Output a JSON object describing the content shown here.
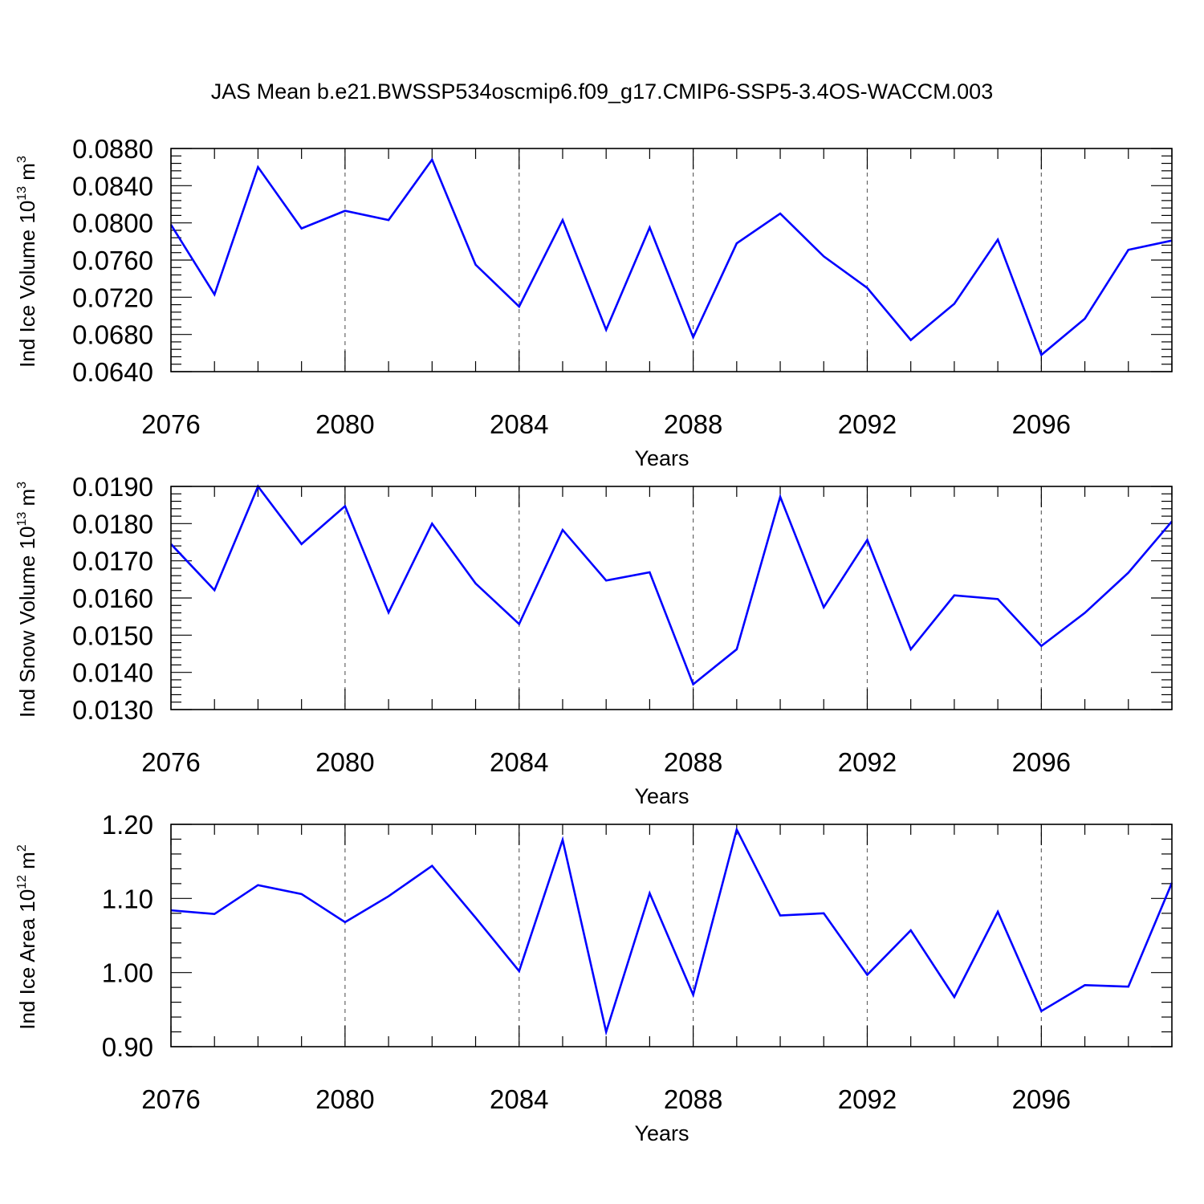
{
  "figure": {
    "title": "JAS Mean b.e21.BWSSP534oscmip6.f09_g17.CMIP6-SSP5-3.4OS-WACCM.003",
    "line_color": "#0000ff"
  },
  "chart_data": [
    {
      "type": "line",
      "xlabel": "Years",
      "ylabel": "Ind Ice Volume 10",
      "ylabel_exp": "13",
      "ylabel_unit": " m",
      "ylabel_unit_exp": "3",
      "xlim": [
        2076,
        2099
      ],
      "ylim": [
        0.064,
        0.088
      ],
      "yticks": [
        0.064,
        0.068,
        0.072,
        0.076,
        0.08,
        0.084,
        0.088
      ],
      "ytick_labels": [
        "0.0640",
        "0.0680",
        "0.0720",
        "0.0760",
        "0.0800",
        "0.0840",
        "0.0880"
      ],
      "xticks": [
        2076,
        2080,
        2084,
        2088,
        2092,
        2096
      ],
      "xtick_labels": [
        "2076",
        "2080",
        "2084",
        "2088",
        "2092",
        "2096"
      ],
      "grid": "vertical-dashed",
      "x": [
        2076,
        2077,
        2078,
        2079,
        2080,
        2081,
        2082,
        2083,
        2084,
        2085,
        2086,
        2087,
        2088,
        2089,
        2090,
        2091,
        2092,
        2093,
        2094,
        2095,
        2096,
        2097,
        2098,
        2099
      ],
      "y": [
        0.0798,
        0.0723,
        0.086,
        0.0794,
        0.0813,
        0.0803,
        0.0868,
        0.0755,
        0.071,
        0.0803,
        0.0685,
        0.0795,
        0.0677,
        0.0778,
        0.081,
        0.0764,
        0.073,
        0.0674,
        0.0713,
        0.0782,
        0.0658,
        0.0697,
        0.0771,
        0.0781
      ]
    },
    {
      "type": "line",
      "xlabel": "Years",
      "ylabel": "Ind Snow Volume 10",
      "ylabel_exp": "13",
      "ylabel_unit": " m",
      "ylabel_unit_exp": "3",
      "xlim": [
        2076,
        2099
      ],
      "ylim": [
        0.013,
        0.019
      ],
      "yticks": [
        0.013,
        0.014,
        0.015,
        0.016,
        0.017,
        0.018,
        0.019
      ],
      "ytick_labels": [
        "0.0130",
        "0.0140",
        "0.0150",
        "0.0160",
        "0.0170",
        "0.0180",
        "0.0190"
      ],
      "xticks": [
        2076,
        2080,
        2084,
        2088,
        2092,
        2096
      ],
      "xtick_labels": [
        "2076",
        "2080",
        "2084",
        "2088",
        "2092",
        "2096"
      ],
      "grid": "vertical-dashed",
      "x": [
        2076,
        2077,
        2078,
        2079,
        2080,
        2081,
        2082,
        2083,
        2084,
        2085,
        2086,
        2087,
        2088,
        2089,
        2090,
        2091,
        2092,
        2093,
        2094,
        2095,
        2096,
        2097,
        2098,
        2099
      ],
      "y": [
        0.01745,
        0.01621,
        0.019,
        0.01745,
        0.01847,
        0.01561,
        0.018,
        0.01639,
        0.0153,
        0.01783,
        0.01647,
        0.01669,
        0.01368,
        0.01462,
        0.01872,
        0.01575,
        0.01756,
        0.01462,
        0.01607,
        0.01597,
        0.01471,
        0.0156,
        0.01668,
        0.01806
      ]
    },
    {
      "type": "line",
      "xlabel": "Years",
      "ylabel": "Ind Ice Area 10",
      "ylabel_exp": "12",
      "ylabel_unit": " m",
      "ylabel_unit_exp": "2",
      "xlim": [
        2076,
        2099
      ],
      "ylim": [
        0.9,
        1.2
      ],
      "yticks": [
        0.9,
        1.0,
        1.1,
        1.2
      ],
      "ytick_labels": [
        "0.90",
        "1.00",
        "1.10",
        "1.20"
      ],
      "xticks": [
        2076,
        2080,
        2084,
        2088,
        2092,
        2096
      ],
      "xtick_labels": [
        "2076",
        "2080",
        "2084",
        "2088",
        "2092",
        "2096"
      ],
      "grid": "vertical-dashed",
      "x": [
        2076,
        2077,
        2078,
        2079,
        2080,
        2081,
        2082,
        2083,
        2084,
        2085,
        2086,
        2087,
        2088,
        2089,
        2090,
        2091,
        2092,
        2093,
        2094,
        2095,
        2096,
        2097,
        2098,
        2099
      ],
      "y": [
        1.084,
        1.079,
        1.118,
        1.106,
        1.068,
        1.103,
        1.144,
        1.074,
        1.002,
        1.179,
        0.92,
        1.107,
        0.97,
        1.193,
        1.077,
        1.08,
        0.997,
        1.057,
        0.967,
        1.082,
        0.948,
        0.983,
        0.981,
        1.121
      ]
    }
  ]
}
